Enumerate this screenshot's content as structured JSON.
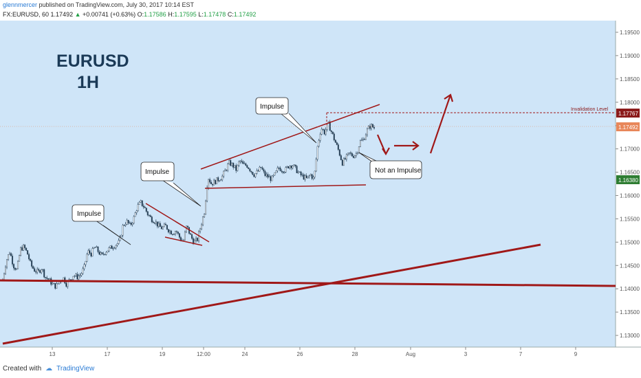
{
  "header": {
    "author": "glennmercer",
    "published": "published on TradingView.com, July 30, 2017 10:14 EST",
    "symbol_line": "FX:EURUSD, 60",
    "last": "1.17492",
    "change": "+0.00741 (+0.63%)",
    "o_label": "O:",
    "o": "1.17586",
    "h_label": "H:",
    "h": "1.17595",
    "l_label": "L:",
    "l": "1.17478",
    "c_label": "C:",
    "c": "1.17492"
  },
  "footer": {
    "created_with": "Created with",
    "brand": "TradingView"
  },
  "chart_data": {
    "type": "candlestick",
    "title_line1": "EURUSD",
    "title_line2": "1H",
    "symbol": "FX:EURUSD",
    "interval": "60",
    "ylim": [
      1.1275,
      1.1975
    ],
    "y_ticks": [
      "1.19500",
      "1.19000",
      "1.18500",
      "1.18000",
      "1.17500",
      "1.17000",
      "1.16500",
      "1.16000",
      "1.15500",
      "1.15000",
      "1.14500",
      "1.14000",
      "1.13500",
      "1.13000"
    ],
    "x_ticks": [
      "13",
      "17",
      "19",
      "12:00",
      "24",
      "26",
      "28",
      "Aug",
      "3",
      "7",
      "9"
    ],
    "price_labels": [
      {
        "value": "1.17767",
        "color": "#8b1a1a"
      },
      {
        "value": "1.17492",
        "color": "#e8875a"
      },
      {
        "value": "1.16380",
        "color": "#2e7d32"
      }
    ],
    "invalidation_label": "Invalidation Level",
    "invalidation_value": 1.17767,
    "callouts": [
      "Impulse",
      "Impulse",
      "Impulse",
      "Not an Impulse"
    ],
    "price_path": [
      [
        1.142,
        1.146,
        1.148,
        1.145,
        1.144,
        1.1485,
        1.149,
        1.1475,
        1.145,
        1.144,
        1.1435,
        1.1445,
        1.1425,
        1.142,
        1.141,
        1.1405,
        1.1415,
        1.1425,
        1.141,
        1.142,
        1.143,
        1.1425,
        1.143,
        1.1445,
        1.148,
        1.1475,
        1.149,
        1.148,
        1.147,
        1.148,
        1.1485,
        1.149,
        1.1495,
        1.15,
        1.1535,
        1.1545,
        1.1535,
        1.155,
        1.1575,
        1.1585,
        1.1575,
        1.156,
        1.155,
        1.1545,
        1.1535,
        1.153,
        1.1535,
        1.1525,
        1.152,
        1.1525,
        1.151,
        1.15,
        1.1535,
        1.1515,
        1.15,
        1.1505,
        1.1535,
        1.1565,
        1.164,
        1.1625,
        1.163,
        1.1635,
        1.164,
        1.1655,
        1.167,
        1.1665,
        1.1655,
        1.1675,
        1.1665,
        1.1665,
        1.1655,
        1.1645,
        1.165,
        1.166,
        1.1645,
        1.164,
        1.1635,
        1.1645,
        1.166,
        1.1655,
        1.1655,
        1.1665,
        1.1665,
        1.1655,
        1.1645,
        1.164,
        1.1635,
        1.1645,
        1.1635,
        1.1705,
        1.1745,
        1.1735,
        1.1755,
        1.1735,
        1.1715,
        1.1695,
        1.167,
        1.168,
        1.169,
        1.1685,
        1.169,
        1.1715,
        1.172,
        1.174,
        1.175,
        1.1745
      ]
    ]
  }
}
